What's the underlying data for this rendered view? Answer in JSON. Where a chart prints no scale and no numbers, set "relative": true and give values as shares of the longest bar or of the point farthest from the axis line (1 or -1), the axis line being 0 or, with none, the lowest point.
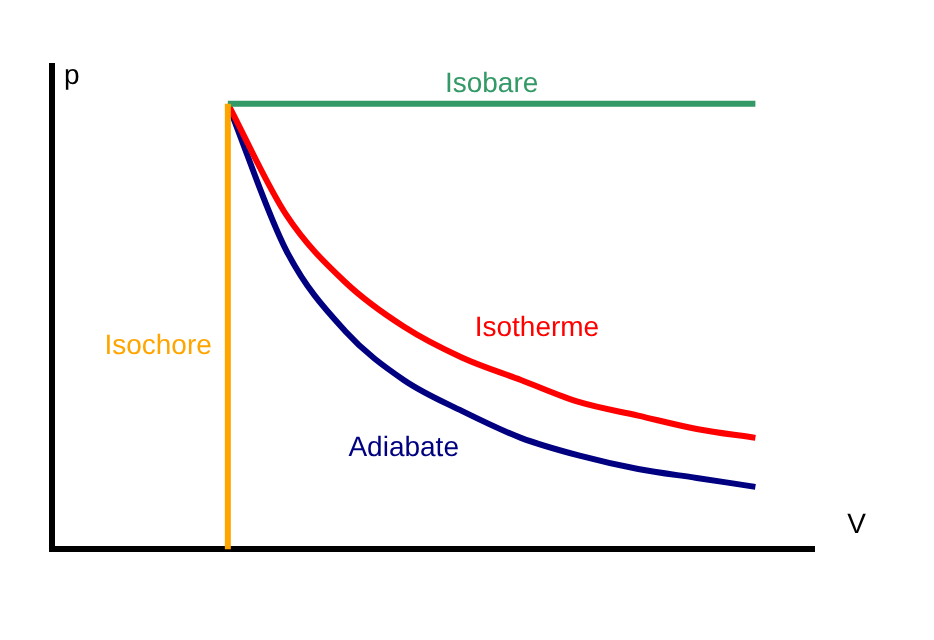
{
  "chart_data": {
    "type": "line",
    "relative": true,
    "xlabel": "V",
    "ylabel": "p",
    "line_style": "solid",
    "marker": "none",
    "categories": [
      null,
      null,
      null,
      null,
      null,
      null,
      null,
      null,
      null,
      null,
      null,
      null,
      null,
      null
    ],
    "series": [
      {
        "name": "Isobare",
        "color": "#339966",
        "values": [
          null,
          null,
          null,
          1,
          1,
          1,
          1,
          1,
          1,
          1,
          1,
          1,
          1,
          null
        ]
      },
      {
        "name": "Isotherme",
        "color": "#ff0000",
        "values": [
          null,
          null,
          null,
          1,
          0.75,
          0.6,
          0.5,
          0.43,
          0.38,
          0.33,
          0.3,
          0.27,
          0.25,
          null
        ]
      },
      {
        "name": "Adiabate",
        "color": "#000080",
        "values": [
          null,
          null,
          null,
          1,
          0.67,
          0.49,
          0.38,
          0.31,
          0.25,
          0.21,
          0.18,
          0.16,
          0.14,
          null
        ]
      }
    ],
    "ref_lines": [
      {
        "axis": "x",
        "label": "Isochore",
        "color": "#ffa500"
      }
    ]
  }
}
